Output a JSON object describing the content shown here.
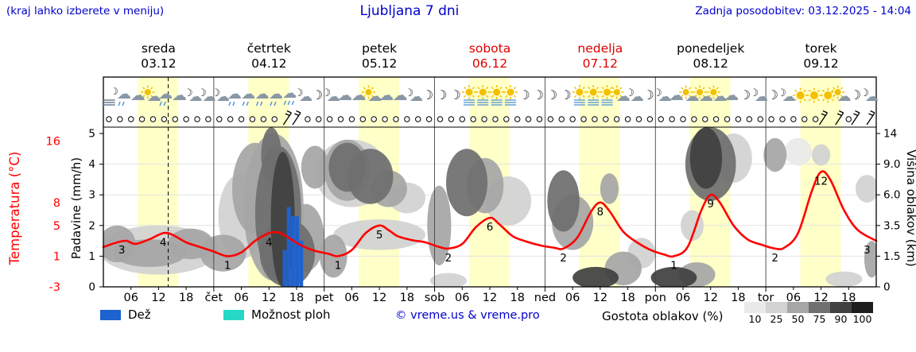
{
  "header": {
    "hint": "(kraj lahko izberete v meniju)",
    "title": "Ljubljana 7 dni",
    "updated": "Zadnja posodobitev: 03.12.2025 - 14:04"
  },
  "colors": {
    "blue_text": "#0000cc",
    "weekend_red": "#dd0000",
    "temp_line": "#ff0000",
    "rain_bar": "#1e62d0",
    "shower_bar": "#26d9c7",
    "day_band": "#ffffc8",
    "frame": "#000000"
  },
  "legend": {
    "rain_label": "Dež",
    "shower_label": "Možnost ploh",
    "copyright": "© vreme.us & vreme.pro",
    "cloud_density_label": "Gostota oblakov (%)",
    "density_steps": [
      {
        "label": "10",
        "color": "#e9e9e9"
      },
      {
        "label": "25",
        "color": "#d2d2d2"
      },
      {
        "label": "50",
        "color": "#a6a6a6"
      },
      {
        "label": "75",
        "color": "#6f6f6f"
      },
      {
        "label": "90",
        "color": "#414141"
      },
      {
        "label": "100",
        "color": "#1d1d1d"
      }
    ]
  },
  "chart_data": {
    "type": "meteogram",
    "days": [
      {
        "name": "sreda",
        "date": "03.12",
        "weekend": false
      },
      {
        "name": "četrtek",
        "date": "04.12",
        "weekend": false
      },
      {
        "name": "petek",
        "date": "05.12",
        "weekend": false
      },
      {
        "name": "sobota",
        "date": "06.12",
        "weekend": true
      },
      {
        "name": "nedelja",
        "date": "07.12",
        "weekend": true
      },
      {
        "name": "ponedeljek",
        "date": "08.12",
        "weekend": false
      },
      {
        "name": "torek",
        "date": "09.12",
        "weekend": false
      }
    ],
    "day_abbrs": [
      "čet",
      "pet",
      "sob",
      "ned",
      "pon",
      "tor"
    ],
    "hour_labels": [
      "06",
      "12",
      "18"
    ],
    "axes": {
      "precip": {
        "label": "Padavine (mm/h)",
        "ticks": [
          "0",
          "1",
          "2",
          "3",
          "4",
          "5"
        ]
      },
      "temp": {
        "label": "Temperatura (°C)",
        "ticks": [
          {
            "label": "16",
            "value": 16
          },
          {
            "label": "8",
            "value": 8
          },
          {
            "label": "5",
            "value": 5
          },
          {
            "label": "1",
            "value": 1
          },
          {
            "label": "-3",
            "value": -3
          }
        ]
      },
      "cloud": {
        "label": "Višina oblakov (km)",
        "ticks": [
          "14",
          "9.0",
          "6.0",
          "3.5",
          "1.5",
          "0"
        ]
      }
    },
    "now_hour": 14.1,
    "sun_band": {
      "start": 7.5,
      "end": 16.3
    },
    "temperature_series": [
      [
        0,
        2.2
      ],
      [
        3,
        2.8
      ],
      [
        5,
        3.0
      ],
      [
        7,
        2.6
      ],
      [
        10,
        3.2
      ],
      [
        13,
        4.0
      ],
      [
        15,
        3.8
      ],
      [
        18,
        2.8
      ],
      [
        21,
        2.2
      ],
      [
        24,
        1.6
      ],
      [
        27,
        1.0
      ],
      [
        30,
        1.5
      ],
      [
        33,
        3.0
      ],
      [
        36,
        4.0
      ],
      [
        38,
        4.1
      ],
      [
        40,
        3.5
      ],
      [
        43,
        2.4
      ],
      [
        46,
        1.7
      ],
      [
        49,
        1.3
      ],
      [
        51,
        1.0
      ],
      [
        54,
        1.8
      ],
      [
        57,
        4.0
      ],
      [
        60,
        5.0
      ],
      [
        62,
        4.4
      ],
      [
        64,
        3.6
      ],
      [
        67,
        3.1
      ],
      [
        70,
        2.8
      ],
      [
        73,
        2.2
      ],
      [
        75,
        2.0
      ],
      [
        78,
        2.6
      ],
      [
        81,
        4.8
      ],
      [
        84,
        6.0
      ],
      [
        86,
        5.2
      ],
      [
        89,
        3.6
      ],
      [
        92,
        2.9
      ],
      [
        95,
        2.4
      ],
      [
        98,
        2.1
      ],
      [
        100,
        2.0
      ],
      [
        103,
        3.4
      ],
      [
        106,
        6.8
      ],
      [
        108,
        8.0
      ],
      [
        110,
        6.9
      ],
      [
        113,
        4.2
      ],
      [
        116,
        2.8
      ],
      [
        119,
        1.8
      ],
      [
        122,
        1.2
      ],
      [
        124,
        1.0
      ],
      [
        127,
        2.2
      ],
      [
        130,
        7.0
      ],
      [
        132,
        9.0
      ],
      [
        134,
        8.0
      ],
      [
        137,
        5.0
      ],
      [
        140,
        3.2
      ],
      [
        143,
        2.5
      ],
      [
        146,
        2.0
      ],
      [
        148,
        2.1
      ],
      [
        151,
        4.0
      ],
      [
        154,
        9.5
      ],
      [
        156,
        12.0
      ],
      [
        158,
        11.0
      ],
      [
        161,
        7.0
      ],
      [
        164,
        4.4
      ],
      [
        168,
        3.0
      ]
    ],
    "temp_labels": [
      [
        4,
        3
      ],
      [
        13,
        4
      ],
      [
        27,
        1
      ],
      [
        36,
        4
      ],
      [
        51,
        1
      ],
      [
        60,
        5
      ],
      [
        75,
        2
      ],
      [
        84,
        6
      ],
      [
        100,
        2
      ],
      [
        108,
        8
      ],
      [
        124,
        1
      ],
      [
        132,
        9
      ],
      [
        146,
        2
      ],
      [
        156,
        12
      ],
      [
        166,
        3
      ]
    ],
    "rain_bars": [
      [
        39.4,
        1.2
      ],
      [
        40.3,
        2.6
      ],
      [
        41.2,
        2.3
      ],
      [
        42.1,
        2.3
      ],
      [
        43.0,
        1.5
      ]
    ],
    "clouds": [
      [
        3,
        1.4,
        4,
        0.6,
        50
      ],
      [
        12,
        1.2,
        13,
        0.8,
        25
      ],
      [
        10,
        1.1,
        8,
        0.45,
        50
      ],
      [
        19,
        1.4,
        5,
        0.5,
        50
      ],
      [
        26,
        1.1,
        5,
        0.6,
        50
      ],
      [
        30,
        2.3,
        5,
        1.4,
        25
      ],
      [
        33,
        3.2,
        5,
        1.5,
        50
      ],
      [
        37,
        2.6,
        6.5,
        2.4,
        50
      ],
      [
        38,
        2.4,
        5,
        2.2,
        75
      ],
      [
        39,
        2.2,
        2.6,
        2.2,
        90
      ],
      [
        36.5,
        4.3,
        2.2,
        0.9,
        75
      ],
      [
        40,
        1.1,
        6,
        1.1,
        75
      ],
      [
        44,
        1.6,
        4,
        1.1,
        50
      ],
      [
        46,
        3.9,
        3,
        0.7,
        50
      ],
      [
        50,
        1.0,
        3,
        0.7,
        50
      ],
      [
        53,
        3.8,
        5,
        1.0,
        50
      ],
      [
        54,
        3.7,
        8,
        1.1,
        25
      ],
      [
        53,
        3.9,
        4,
        0.8,
        75
      ],
      [
        58,
        3.6,
        5,
        0.9,
        75
      ],
      [
        62,
        3.2,
        4,
        0.6,
        50
      ],
      [
        66,
        2.9,
        4,
        0.5,
        25
      ],
      [
        60,
        1.7,
        10,
        0.5,
        25
      ],
      [
        73,
        2.0,
        2.6,
        1.3,
        50
      ],
      [
        79,
        3.4,
        4.5,
        1.1,
        75
      ],
      [
        83,
        3.3,
        4,
        0.9,
        50
      ],
      [
        88,
        2.8,
        5,
        0.8,
        25
      ],
      [
        75,
        0.2,
        4,
        0.25,
        25
      ],
      [
        100,
        2.8,
        3.5,
        1.0,
        75
      ],
      [
        102,
        2.1,
        4.5,
        0.9,
        50
      ],
      [
        107,
        0.3,
        5,
        0.35,
        90
      ],
      [
        113,
        0.6,
        4,
        0.55,
        50
      ],
      [
        110,
        3.2,
        2,
        0.5,
        50
      ],
      [
        117,
        1.1,
        3,
        0.5,
        25
      ],
      [
        124,
        0.3,
        5,
        0.35,
        90
      ],
      [
        129,
        0.4,
        4,
        0.4,
        50
      ],
      [
        131,
        4.2,
        3.5,
        1.0,
        90
      ],
      [
        132,
        4.0,
        5.5,
        1.2,
        75
      ],
      [
        137,
        4.2,
        4,
        0.8,
        25
      ],
      [
        128,
        2.0,
        2.5,
        0.5,
        25
      ],
      [
        146,
        4.3,
        2.5,
        0.55,
        50
      ],
      [
        151,
        4.4,
        3,
        0.45,
        10
      ],
      [
        156,
        4.3,
        2,
        0.35,
        25
      ],
      [
        166,
        3.2,
        2.5,
        0.45,
        25
      ],
      [
        161,
        0.25,
        4,
        0.25,
        25
      ],
      [
        167,
        0.9,
        1.6,
        0.6,
        50
      ]
    ],
    "icons": [
      "fog-moon",
      "cloud-drizzle",
      "cloud",
      "sun-cloud",
      "cloud-drizzle",
      "cloud",
      "moon-cloud",
      "moon-cloud",
      "moon-cloud",
      "cloud-drizzle",
      "cloud-drizzle",
      "cloud-drizzle",
      "cloud-drizzle",
      "rain-cloud",
      "moon-cloud",
      "moon",
      "moon-cloud",
      "cloud",
      "cloud",
      "sun-cloud",
      "cloud",
      "cloud",
      "moon-cloud",
      "moon",
      "moon",
      "moon",
      "sun-haze",
      "sun-haze",
      "sun-haze",
      "sun-haze",
      "moon",
      "moon",
      "moon",
      "moon",
      "sun-haze",
      "sun-haze",
      "sun-haze",
      "sun-cloud",
      "moon-cloud",
      "moon",
      "moon-cloud",
      "cloud",
      "sun-cloud",
      "sun-cloud",
      "sun-cloud",
      "cloud",
      "moon",
      "moon-cloud",
      "moon",
      "moon-cloud",
      "sun",
      "sun",
      "sun",
      "sun-cloud",
      "moon",
      "moon-cloud"
    ],
    "barb_hours": [
      40,
      42,
      156.5,
      160,
      163.5,
      166.8
    ],
    "circle_step": 2.4
  }
}
